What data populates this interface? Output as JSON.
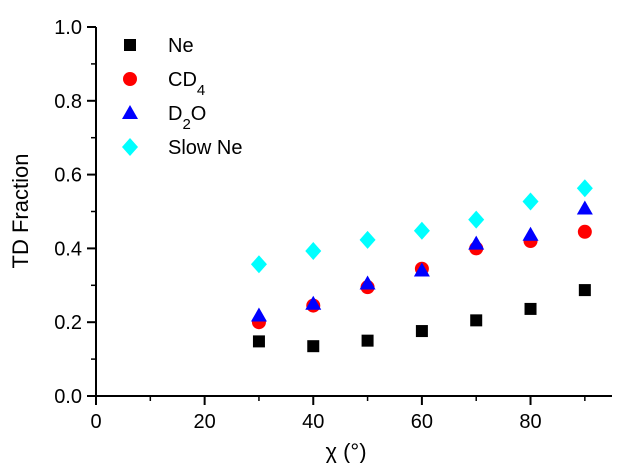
{
  "chart_data": {
    "type": "scatter",
    "xlabel": "χ (°)",
    "ylabel": "TD Fraction",
    "xlim": [
      0,
      95
    ],
    "ylim": [
      0.0,
      1.0
    ],
    "x_ticks": [
      "0",
      "20",
      "40",
      "60",
      "80"
    ],
    "y_ticks": [
      "0.0",
      "0.2",
      "0.4",
      "0.6",
      "0.8",
      "1.0"
    ],
    "grid": false,
    "legend_position": "top-left",
    "series": [
      {
        "name": "Ne",
        "marker": "square",
        "color": "#000000",
        "x": [
          30,
          40,
          50,
          60,
          70,
          80,
          90
        ],
        "y": [
          0.148,
          0.135,
          0.15,
          0.176,
          0.205,
          0.236,
          0.287
        ]
      },
      {
        "name": "CD4",
        "marker": "circle",
        "color": "#ff0000",
        "x": [
          30,
          40,
          50,
          60,
          70,
          80,
          90
        ],
        "y": [
          0.2,
          0.245,
          0.295,
          0.345,
          0.4,
          0.42,
          0.445
        ]
      },
      {
        "name": "D2O",
        "marker": "triangle",
        "color": "#0000ff",
        "x": [
          30,
          40,
          50,
          60,
          70,
          80,
          90
        ],
        "y": [
          0.218,
          0.25,
          0.305,
          0.34,
          0.413,
          0.437,
          0.508
        ]
      },
      {
        "name": "Slow Ne",
        "marker": "diamond",
        "color": "#00ffff",
        "x": [
          30,
          40,
          50,
          60,
          70,
          80,
          90
        ],
        "y": [
          0.357,
          0.393,
          0.423,
          0.448,
          0.478,
          0.527,
          0.563
        ]
      }
    ]
  }
}
